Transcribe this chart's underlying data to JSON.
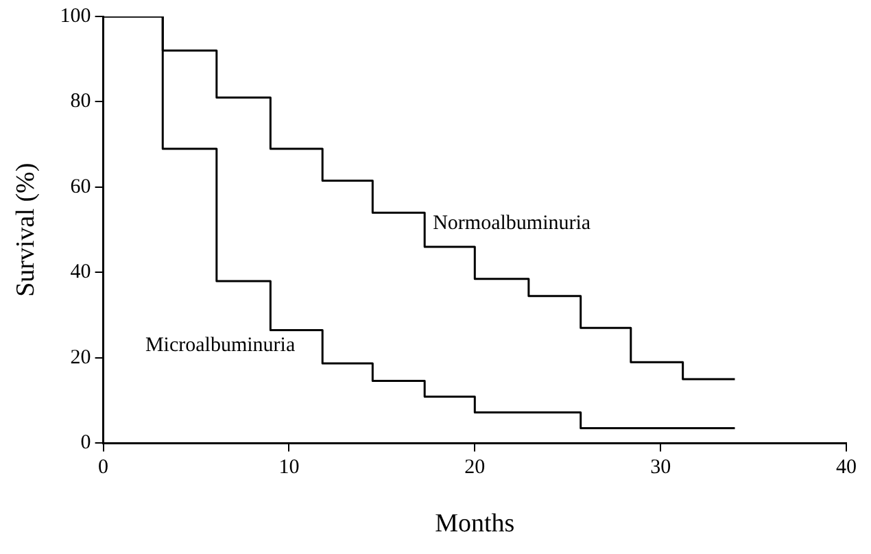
{
  "chart_data": {
    "type": "step",
    "xlabel": "Months",
    "ylabel": "Survival (%)",
    "xlim": [
      0,
      40
    ],
    "xticks": [
      0,
      10,
      20,
      30,
      40
    ],
    "ylim": [
      0,
      100
    ],
    "yticks": [
      0,
      20,
      40,
      60,
      80,
      100
    ],
    "grid": false,
    "legend": false,
    "marker": "none",
    "line_style": "solid",
    "series": [
      {
        "name": "Normoalbuminuria",
        "color": "#000000",
        "x": [
          0,
          3.2,
          6.1,
          9.0,
          11.8,
          14.5,
          17.3,
          20,
          22.9,
          25.7,
          28.4,
          31.2,
          34
        ],
        "values": [
          100,
          92,
          81,
          69,
          61.5,
          54,
          46,
          38.5,
          34.5,
          27,
          19,
          15,
          15
        ]
      },
      {
        "name": "Microalbuminuria",
        "color": "#000000",
        "x": [
          0,
          3.2,
          6.1,
          9.0,
          11.8,
          14.5,
          17.3,
          20,
          25.7,
          34
        ],
        "values": [
          100,
          69,
          38,
          26.5,
          18.7,
          14.6,
          10.9,
          7.2,
          3.5,
          3.5
        ]
      }
    ]
  }
}
